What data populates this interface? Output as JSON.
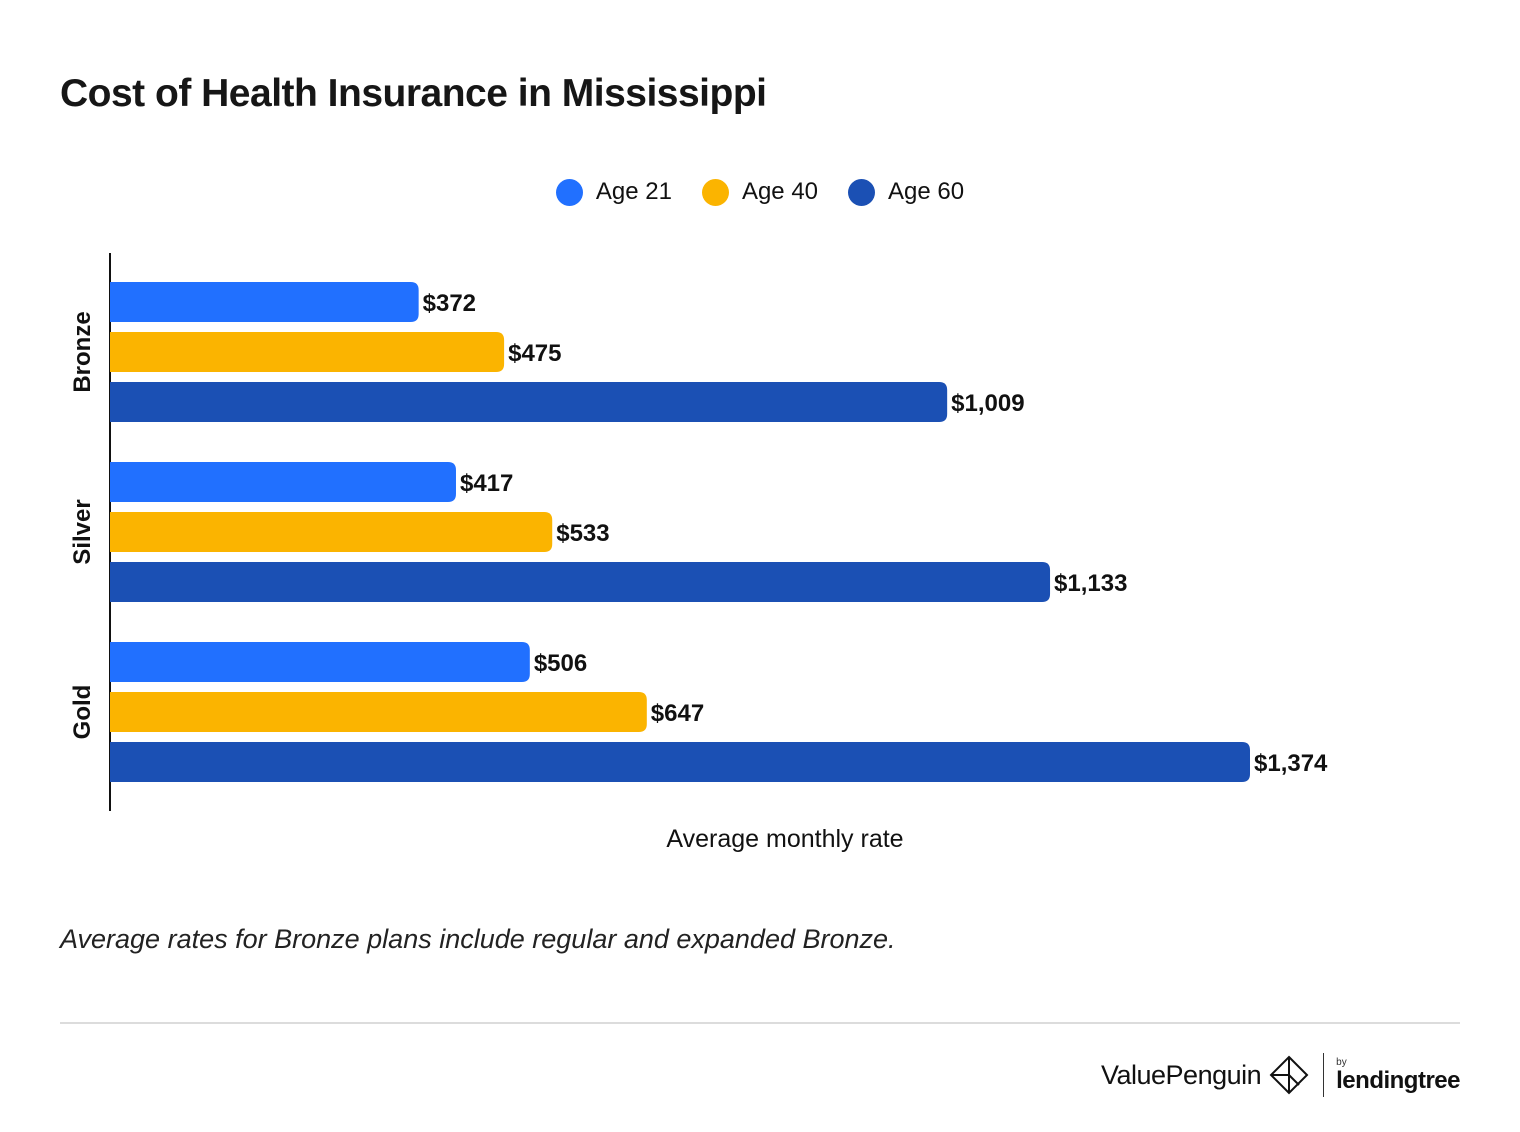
{
  "chart_data": {
    "type": "bar",
    "orientation": "horizontal",
    "title": "Cost of Health Insurance in Mississippi",
    "xlabel": "Average monthly rate",
    "ylabel": "",
    "categories": [
      "Bronze",
      "Silver",
      "Gold"
    ],
    "series": [
      {
        "name": "Age 21",
        "color": "#2170ff",
        "values": [
          372,
          417,
          506
        ],
        "labels": [
          "$372",
          "$417",
          "$506"
        ]
      },
      {
        "name": "Age 40",
        "color": "#fbb400",
        "values": [
          475,
          533,
          647
        ],
        "labels": [
          "$475",
          "$533",
          "$647"
        ]
      },
      {
        "name": "Age 60",
        "color": "#1b50b4",
        "values": [
          1009,
          1133,
          1374
        ],
        "labels": [
          "$1,009",
          "$1,133",
          "$1,374"
        ]
      }
    ],
    "xlim": [
      0,
      1374
    ],
    "grid": false,
    "legend_position": "top-center"
  },
  "legend": {
    "items": [
      {
        "label": "Age 21",
        "color": "#2170ff"
      },
      {
        "label": "Age 40",
        "color": "#fbb400"
      },
      {
        "label": "Age 60",
        "color": "#1b50b4"
      }
    ]
  },
  "footnote": "Average rates for Bronze plans include regular and expanded Bronze.",
  "branding": {
    "primary": "ValuePenguin",
    "by": "by",
    "secondary": "lendingtree"
  }
}
